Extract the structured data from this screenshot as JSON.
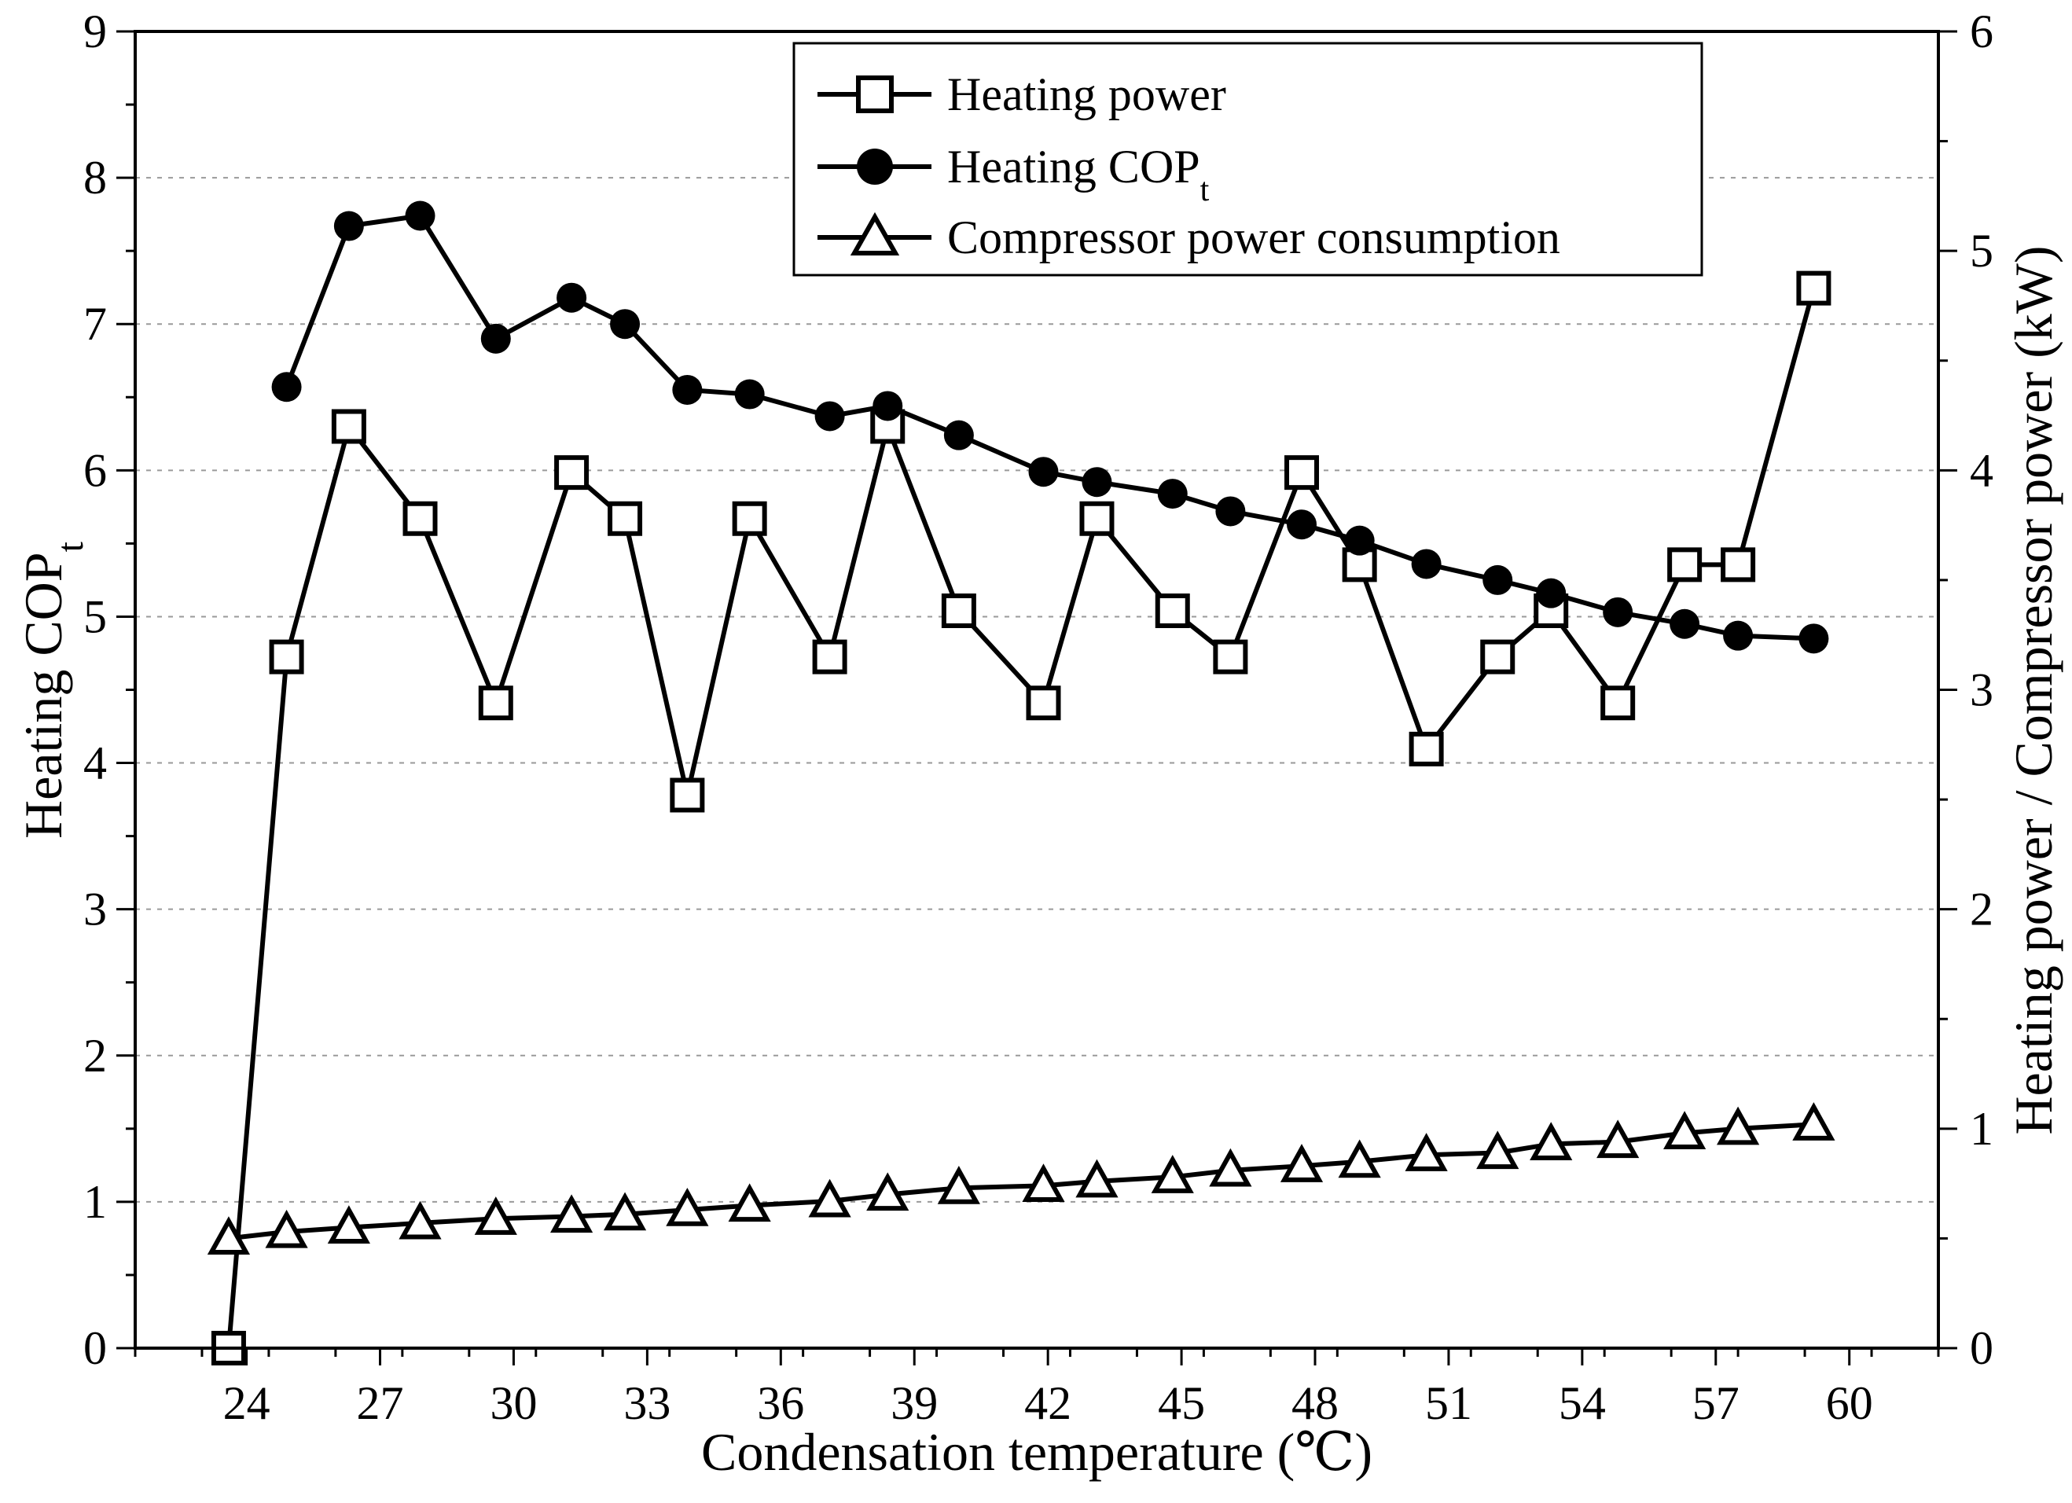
{
  "chart_data": {
    "type": "line",
    "title": "",
    "xlabel": "Condensation temperature (℃)",
    "ylabel_left": "Heating COP",
    "ylabel_left_sub": "t",
    "ylabel_right": "Heating power / Compressor power (kW)",
    "xlim": [
      21.5,
      62
    ],
    "ylim_left": [
      0,
      9
    ],
    "ylim_right": [
      0,
      6
    ],
    "xticks": [
      24,
      27,
      30,
      33,
      36,
      39,
      42,
      45,
      48,
      51,
      54,
      57,
      60
    ],
    "yticks_left": [
      0,
      1,
      2,
      3,
      4,
      5,
      6,
      7,
      8,
      9
    ],
    "yticks_right": [
      0,
      1,
      2,
      3,
      4,
      5,
      6
    ],
    "grid": "horizontal dashed",
    "legend_placement": "top-center",
    "series": [
      {
        "name": "Heating power",
        "axis": "right",
        "marker": "open-square",
        "x": [
          23.6,
          24.9,
          26.3,
          27.9,
          29.6,
          31.3,
          32.5,
          33.9,
          35.3,
          37.1,
          38.4,
          40.0,
          41.9,
          43.1,
          44.8,
          46.1,
          47.7,
          49.0,
          50.5,
          52.1,
          53.3,
          54.8,
          56.3,
          57.5,
          59.2
        ],
        "values": [
          0.0,
          3.15,
          4.2,
          3.78,
          2.94,
          3.99,
          3.78,
          2.52,
          3.78,
          3.15,
          4.2,
          3.36,
          2.94,
          3.78,
          3.36,
          3.15,
          3.99,
          3.57,
          2.73,
          3.15,
          3.36,
          2.94,
          3.57,
          3.57,
          4.83
        ]
      },
      {
        "name": "Heating COP",
        "name_sub": "t",
        "axis": "left",
        "marker": "filled-circle",
        "x": [
          24.9,
          26.3,
          27.9,
          29.6,
          31.3,
          32.5,
          33.9,
          35.3,
          37.1,
          38.4,
          40.0,
          41.9,
          43.1,
          44.8,
          46.1,
          47.7,
          49.0,
          50.5,
          52.1,
          53.3,
          54.8,
          56.3,
          57.5,
          59.2
        ],
        "values": [
          6.57,
          7.67,
          7.74,
          6.9,
          7.18,
          7.0,
          6.55,
          6.52,
          6.37,
          6.44,
          6.24,
          5.99,
          5.92,
          5.84,
          5.72,
          5.63,
          5.52,
          5.36,
          5.25,
          5.16,
          5.03,
          4.95,
          4.87,
          4.85
        ]
      },
      {
        "name": "Compressor power consumption",
        "axis": "right",
        "marker": "open-triangle",
        "x": [
          23.6,
          24.9,
          26.3,
          27.9,
          29.6,
          31.3,
          32.5,
          33.9,
          35.3,
          37.1,
          38.4,
          40.0,
          41.9,
          43.1,
          44.8,
          46.1,
          47.7,
          49.0,
          50.5,
          52.1,
          53.3,
          54.8,
          56.3,
          57.5,
          59.2
        ],
        "values": [
          0.5,
          0.53,
          0.55,
          0.57,
          0.59,
          0.6,
          0.61,
          0.63,
          0.65,
          0.67,
          0.7,
          0.73,
          0.74,
          0.76,
          0.78,
          0.81,
          0.83,
          0.85,
          0.88,
          0.89,
          0.93,
          0.94,
          0.98,
          1.0,
          1.02
        ]
      }
    ]
  }
}
